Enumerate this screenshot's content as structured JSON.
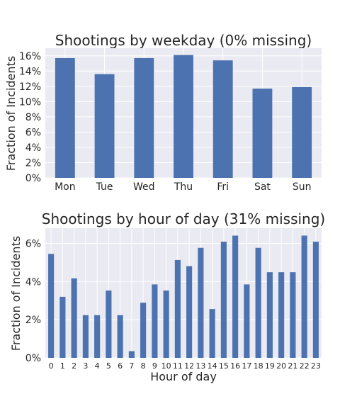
{
  "chart_data": [
    {
      "type": "bar",
      "title": "Shootings by weekday (0% missing)",
      "xlabel": "",
      "ylabel": "Fraction of Incidents",
      "categories": [
        "Mon",
        "Tue",
        "Wed",
        "Thu",
        "Fri",
        "Sat",
        "Sun"
      ],
      "values": [
        0.157,
        0.136,
        0.157,
        0.161,
        0.154,
        0.117,
        0.119
      ],
      "ylim": [
        0,
        0.17
      ],
      "yticks": [
        0,
        0.02,
        0.04,
        0.06,
        0.08,
        0.1,
        0.12,
        0.14,
        0.16
      ],
      "ytick_labels": [
        "0%",
        "2%",
        "4%",
        "6%",
        "8%",
        "10%",
        "12%",
        "14%",
        "16%"
      ],
      "grid": true,
      "bar_color": "#4c72b0",
      "background_color": "#eaeaf2"
    },
    {
      "type": "bar",
      "title": "Shootings by hour of day (31% missing)",
      "xlabel": "Hour of day",
      "ylabel": "Fraction of Incidents",
      "categories": [
        "0",
        "1",
        "2",
        "3",
        "4",
        "5",
        "6",
        "7",
        "8",
        "9",
        "10",
        "11",
        "12",
        "13",
        "14",
        "15",
        "16",
        "17",
        "18",
        "19",
        "20",
        "21",
        "22",
        "23"
      ],
      "values": [
        0.0545,
        0.032,
        0.0417,
        0.0224,
        0.0224,
        0.0353,
        0.0224,
        0.0035,
        0.0289,
        0.0385,
        0.0353,
        0.0513,
        0.0481,
        0.0577,
        0.0256,
        0.0609,
        0.0641,
        0.0385,
        0.0577,
        0.0449,
        0.0449,
        0.0449,
        0.0641,
        0.0609
      ],
      "ylim": [
        0,
        0.068
      ],
      "yticks": [
        0,
        0.02,
        0.04,
        0.06
      ],
      "ytick_labels": [
        "0%",
        "2%",
        "4%",
        "6%"
      ],
      "grid": true,
      "bar_color": "#4c72b0",
      "background_color": "#eaeaf2"
    }
  ]
}
